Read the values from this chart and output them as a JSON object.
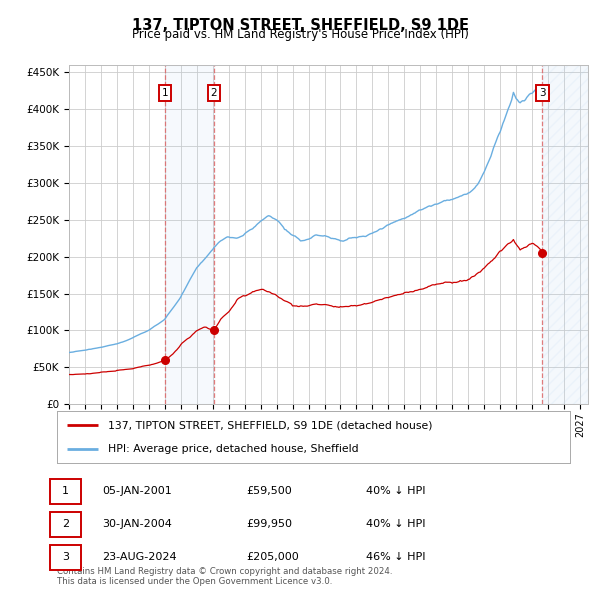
{
  "title": "137, TIPTON STREET, SHEFFIELD, S9 1DE",
  "subtitle": "Price paid vs. HM Land Registry's House Price Index (HPI)",
  "legend_line1": "137, TIPTON STREET, SHEFFIELD, S9 1DE (detached house)",
  "legend_line2": "HPI: Average price, detached house, Sheffield",
  "footnote1": "Contains HM Land Registry data © Crown copyright and database right 2024.",
  "footnote2": "This data is licensed under the Open Government Licence v3.0.",
  "transactions": [
    {
      "label": "1",
      "date": "05-JAN-2001",
      "price_str": "£59,500",
      "pct_str": "40% ↓ HPI",
      "x_year": 2001.01,
      "price": 59500
    },
    {
      "label": "2",
      "date": "30-JAN-2004",
      "price_str": "£99,950",
      "pct_str": "40% ↓ HPI",
      "x_year": 2004.08,
      "price": 99950
    },
    {
      "label": "3",
      "date": "23-AUG-2024",
      "price_str": "£205,000",
      "pct_str": "46% ↓ HPI",
      "x_year": 2024.64,
      "price": 205000
    }
  ],
  "hpi_color": "#6aaee0",
  "price_color": "#cc0000",
  "vline_color": "#dd6666",
  "background_color": "#ffffff",
  "grid_color": "#cccccc",
  "ylim": [
    0,
    460000
  ],
  "xlim_start": 1995.0,
  "xlim_end": 2027.5
}
